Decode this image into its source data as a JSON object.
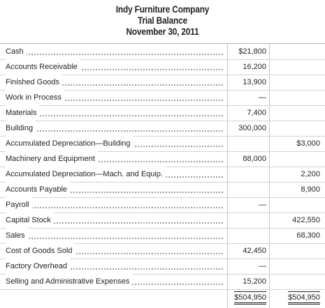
{
  "header": {
    "company": "Indy Furniture Company",
    "statement": "Trial Balance",
    "date": "November 30, 2011"
  },
  "accounts": [
    {
      "name": "Cash",
      "debit": "$21,800",
      "credit": ""
    },
    {
      "name": "Accounts Receivable",
      "debit": "16,200",
      "credit": ""
    },
    {
      "name": "Finished Goods",
      "debit": "13,900",
      "credit": ""
    },
    {
      "name": "Work in Process",
      "debit": "—",
      "credit": ""
    },
    {
      "name": "Materials",
      "debit": "7,400",
      "credit": ""
    },
    {
      "name": "Building",
      "debit": "300,000",
      "credit": ""
    },
    {
      "name": "Accumulated Depreciation—Building",
      "debit": "",
      "credit": "$3,000"
    },
    {
      "name": "Machinery and Equipment",
      "debit": "88,000",
      "credit": ""
    },
    {
      "name": "Accumulated Depreciation—Mach. and Equip.",
      "debit": "",
      "credit": "2,200"
    },
    {
      "name": "Accounts Payable",
      "debit": "",
      "credit": "8,900"
    },
    {
      "name": "Payroll",
      "debit": "—",
      "credit": ""
    },
    {
      "name": "Capital Stock",
      "debit": "",
      "credit": "422,550"
    },
    {
      "name": "Sales",
      "debit": "",
      "credit": "68,300"
    },
    {
      "name": "Cost of Goods Sold",
      "debit": "42,450",
      "credit": ""
    },
    {
      "name": "Factory Overhead",
      "debit": "—",
      "credit": ""
    },
    {
      "name": "Selling and Administrative Expenses",
      "debit": "15,200",
      "credit": ""
    }
  ],
  "totals": {
    "debit": "$504,950",
    "credit": "$504,950"
  }
}
